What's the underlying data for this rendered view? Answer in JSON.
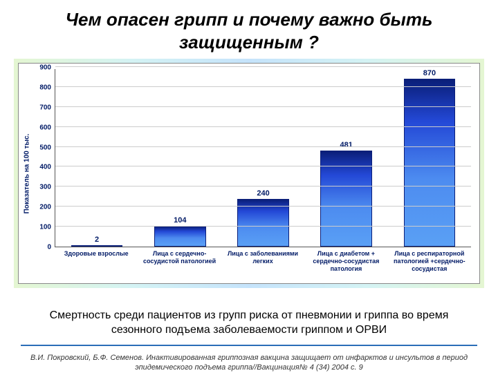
{
  "title": "Чем опасен грипп и почему важно быть защищенным ?",
  "chart": {
    "type": "bar",
    "ylabel": "Показатель на 100 тыс.",
    "ylim": [
      0,
      900
    ],
    "ytick_step": 100,
    "yticks": [
      0,
      100,
      200,
      300,
      400,
      500,
      600,
      700,
      800,
      900
    ],
    "categories": [
      "Здоровые взрослые",
      "Лица с сердечно-сосудистой патологией",
      "Лица с заболеваниями легких",
      "Лица с диабетом + сердечно-сосудистая патология",
      "Лица с респираторной патологией +сердечно-сосудистая"
    ],
    "values": [
      2,
      104,
      240,
      481,
      870
    ],
    "bar_gradient": {
      "top": "#0a1e78",
      "mid": "#2348d6",
      "bottom": "#5aa0f5"
    },
    "bar_width": 0.62,
    "background_gradient": [
      "#e4f6d2",
      "#d4f3f4",
      "#c5e3fb",
      "#d4f3f4",
      "#e4f6d2"
    ],
    "plot_bg": "#ffffff",
    "grid_color": "#cccccc",
    "axis_color": "#555555",
    "label_color": "#001a66",
    "title_fontsize": 26,
    "ytick_fontsize": 10,
    "xlabel_fontsize": 9,
    "value_fontsize": 11
  },
  "caption": "Смертность среди пациентов из групп риска от пневмонии и гриппа во время сезонного подъема заболеваемости гриппом и ОРВИ",
  "citation": "В.И. Покровский, Б.Ф. Семенов. Инактивированная гриппозная вакцина защищает от инфарктов и инсультов в период эпидемического подъема гриппа//Вакцинация№ 4 (34) 2004 с. 9"
}
